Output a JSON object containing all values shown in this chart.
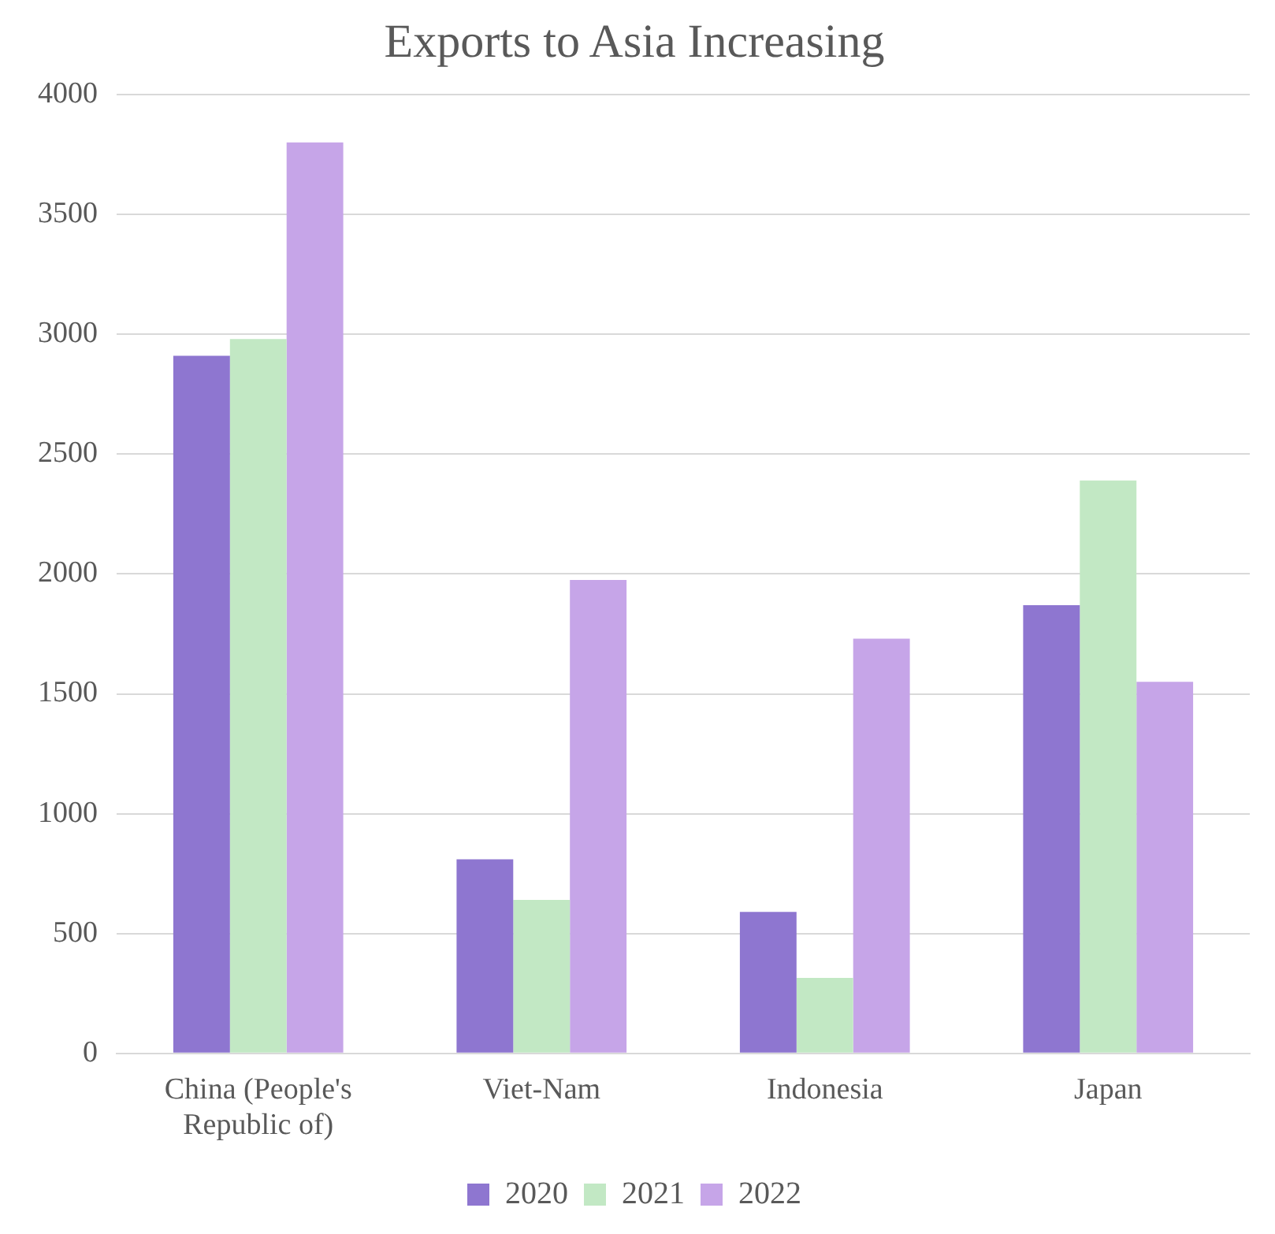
{
  "chart_data": {
    "type": "bar",
    "title": "Exports to Asia Increasing",
    "categories": [
      "China (People's Republic of)",
      "Viet-Nam",
      "Indonesia",
      "Japan"
    ],
    "series": [
      {
        "name": "2020",
        "color": "#8e76d0",
        "values": [
          2910,
          810,
          590,
          1870
        ]
      },
      {
        "name": "2021",
        "color": "#c2e8c4",
        "values": [
          2980,
          640,
          315,
          2390
        ]
      },
      {
        "name": "2022",
        "color": "#c6a5e8",
        "values": [
          3800,
          1975,
          1730,
          1550
        ]
      }
    ],
    "ylim": [
      0,
      4000
    ],
    "yticks": [
      0,
      500,
      1000,
      1500,
      2000,
      2500,
      3000,
      3500,
      4000
    ],
    "grid": "y",
    "legend": "bottom"
  }
}
